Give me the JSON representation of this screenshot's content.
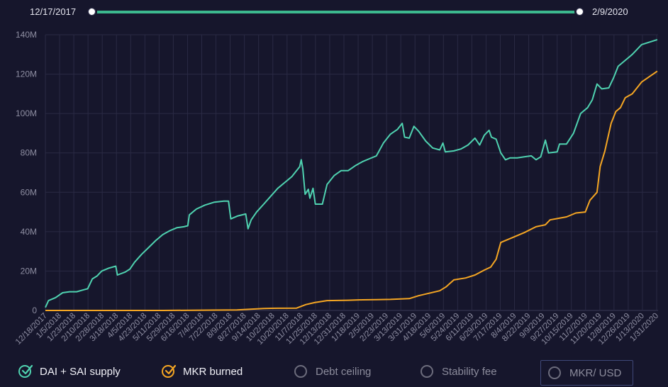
{
  "range": {
    "start_label": "12/17/2017",
    "end_label": "2/9/2020"
  },
  "colors": {
    "background": "#16162c",
    "dai": "#4fd2b0",
    "mkr": "#f5a623",
    "grid": "#2a2a44",
    "track": "#3cb88e"
  },
  "legend": [
    {
      "label": "DAI + SAI supply",
      "active": true,
      "color": "#4fd2b0"
    },
    {
      "label": "MKR burned",
      "active": true,
      "color": "#f5a623"
    },
    {
      "label": "Debt ceiling",
      "active": false
    },
    {
      "label": "Stability fee",
      "active": false
    },
    {
      "label": "MKR/ USD",
      "active": false
    }
  ],
  "chart_data": {
    "type": "line",
    "title": "",
    "xlabel": "",
    "ylabel": "",
    "y_unit": "M",
    "ylim": [
      0,
      140
    ],
    "y_ticks": [
      0,
      20,
      40,
      60,
      80,
      100,
      120,
      140
    ],
    "y_tick_labels": [
      "0",
      "20M",
      "40M",
      "60M",
      "80M",
      "100M",
      "120M",
      "140M"
    ],
    "x_range": [
      "2017-12-18",
      "2020-02-09"
    ],
    "x_tick_labels": [
      "12/18/2017",
      "1/5/2018",
      "1/23/2018",
      "2/10/2018",
      "2/28/2018",
      "3/18/2018",
      "4/5/2018",
      "4/23/2018",
      "5/11/2018",
      "5/29/2018",
      "6/16/2018",
      "7/4/2018",
      "7/22/2018",
      "8/9/2018",
      "8/27/2018",
      "9/14/2018",
      "10/2/2018",
      "10/20/2018",
      "11/7/2018",
      "11/25/2018",
      "12/13/2018",
      "12/31/2018",
      "1/18/2019",
      "2/5/2019",
      "2/23/2019",
      "3/13/2019",
      "3/31/2019",
      "4/18/2019",
      "5/6/2019",
      "5/24/2019",
      "6/11/2019",
      "6/29/2019",
      "7/17/2019",
      "8/4/2019",
      "8/22/2019",
      "9/9/2019",
      "9/27/2019",
      "10/15/2019",
      "11/2/2019",
      "11/20/2019",
      "12/8/2019",
      "12/26/2019",
      "1/13/2020",
      "1/31/2020"
    ],
    "grid": true,
    "legend_position": "bottom",
    "series": [
      {
        "name": "DAI + SAI supply",
        "color": "#4fd2b0",
        "points": [
          [
            "2017-12-18",
            1.5
          ],
          [
            "2017-12-22",
            5
          ],
          [
            "2017-12-31",
            6.5
          ],
          [
            "2018-01-09",
            9
          ],
          [
            "2018-01-18",
            9.5
          ],
          [
            "2018-01-27",
            9.5
          ],
          [
            "2018-02-05",
            10.5
          ],
          [
            "2018-02-10",
            11
          ],
          [
            "2018-02-16",
            16
          ],
          [
            "2018-02-22",
            17.5
          ],
          [
            "2018-02-28",
            20
          ],
          [
            "2018-03-09",
            21.5
          ],
          [
            "2018-03-18",
            22.5
          ],
          [
            "2018-03-20",
            18
          ],
          [
            "2018-03-30",
            19.5
          ],
          [
            "2018-04-05",
            21
          ],
          [
            "2018-04-11",
            24.5
          ],
          [
            "2018-04-20",
            28.5
          ],
          [
            "2018-04-29",
            32
          ],
          [
            "2018-05-08",
            35.5
          ],
          [
            "2018-05-17",
            38.5
          ],
          [
            "2018-05-26",
            40.5
          ],
          [
            "2018-06-04",
            42
          ],
          [
            "2018-06-13",
            42.5
          ],
          [
            "2018-06-18",
            43
          ],
          [
            "2018-06-20",
            48.5
          ],
          [
            "2018-06-29",
            51.5
          ],
          [
            "2018-07-10",
            53.5
          ],
          [
            "2018-07-22",
            55
          ],
          [
            "2018-08-03",
            55.5
          ],
          [
            "2018-08-09",
            55.5
          ],
          [
            "2018-08-12",
            46.5
          ],
          [
            "2018-08-21",
            48
          ],
          [
            "2018-08-31",
            49
          ],
          [
            "2018-09-03",
            41.5
          ],
          [
            "2018-09-07",
            46
          ],
          [
            "2018-09-14",
            50
          ],
          [
            "2018-09-23",
            54
          ],
          [
            "2018-10-02",
            58
          ],
          [
            "2018-10-11",
            62
          ],
          [
            "2018-10-20",
            65
          ],
          [
            "2018-10-29",
            68
          ],
          [
            "2018-11-04",
            71
          ],
          [
            "2018-11-08",
            73
          ],
          [
            "2018-11-10",
            76.5
          ],
          [
            "2018-11-12",
            72
          ],
          [
            "2018-11-15",
            59
          ],
          [
            "2018-11-19",
            61.5
          ],
          [
            "2018-11-21",
            57
          ],
          [
            "2018-11-25",
            62
          ],
          [
            "2018-11-28",
            54
          ],
          [
            "2018-12-07",
            54
          ],
          [
            "2018-12-13",
            64
          ],
          [
            "2018-12-22",
            68.5
          ],
          [
            "2018-12-31",
            71
          ],
          [
            "2019-01-09",
            71
          ],
          [
            "2019-01-18",
            73.5
          ],
          [
            "2019-01-27",
            75.5
          ],
          [
            "2019-02-05",
            77
          ],
          [
            "2019-02-14",
            78.5
          ],
          [
            "2019-02-23",
            85
          ],
          [
            "2019-03-04",
            89.5
          ],
          [
            "2019-03-13",
            92
          ],
          [
            "2019-03-19",
            95
          ],
          [
            "2019-03-22",
            88
          ],
          [
            "2019-03-28",
            87.5
          ],
          [
            "2019-04-03",
            93.5
          ],
          [
            "2019-04-09",
            91
          ],
          [
            "2019-04-18",
            86
          ],
          [
            "2019-04-27",
            82.5
          ],
          [
            "2019-05-06",
            81.5
          ],
          [
            "2019-05-10",
            85
          ],
          [
            "2019-05-13",
            80.5
          ],
          [
            "2019-05-24",
            81
          ],
          [
            "2019-06-02",
            82
          ],
          [
            "2019-06-11",
            84
          ],
          [
            "2019-06-20",
            87.5
          ],
          [
            "2019-06-26",
            84
          ],
          [
            "2019-07-02",
            89
          ],
          [
            "2019-07-08",
            91.5
          ],
          [
            "2019-07-11",
            88
          ],
          [
            "2019-07-17",
            87
          ],
          [
            "2019-07-23",
            80
          ],
          [
            "2019-07-29",
            76.5
          ],
          [
            "2019-08-04",
            77.5
          ],
          [
            "2019-08-13",
            77.5
          ],
          [
            "2019-08-22",
            78
          ],
          [
            "2019-08-31",
            78.5
          ],
          [
            "2019-09-06",
            76.5
          ],
          [
            "2019-09-12",
            78
          ],
          [
            "2019-09-18",
            86.5
          ],
          [
            "2019-09-22",
            80
          ],
          [
            "2019-10-03",
            80.5
          ],
          [
            "2019-10-06",
            84.5
          ],
          [
            "2019-10-15",
            84.5
          ],
          [
            "2019-10-24",
            90
          ],
          [
            "2019-11-02",
            100
          ],
          [
            "2019-11-11",
            103
          ],
          [
            "2019-11-17",
            107
          ],
          [
            "2019-11-23",
            115
          ],
          [
            "2019-11-29",
            112.5
          ],
          [
            "2019-12-08",
            113
          ],
          [
            "2019-12-14",
            118
          ],
          [
            "2019-12-20",
            124
          ],
          [
            "2019-12-29",
            127
          ],
          [
            "2020-01-07",
            130
          ],
          [
            "2020-01-19",
            135
          ],
          [
            "2020-02-08",
            137.5
          ]
        ]
      },
      {
        "name": "MKR burned",
        "color": "#f5a623",
        "points": [
          [
            "2017-12-18",
            0
          ],
          [
            "2018-05-17",
            0
          ],
          [
            "2018-08-20",
            0.3
          ],
          [
            "2018-09-23",
            1
          ],
          [
            "2018-10-11",
            1.1
          ],
          [
            "2018-11-04",
            1.2
          ],
          [
            "2018-11-16",
            3
          ],
          [
            "2018-11-27",
            4
          ],
          [
            "2018-12-13",
            5
          ],
          [
            "2019-01-09",
            5.2
          ],
          [
            "2019-01-27",
            5.4
          ],
          [
            "2019-02-14",
            5.5
          ],
          [
            "2019-03-04",
            5.6
          ],
          [
            "2019-03-28",
            6
          ],
          [
            "2019-04-09",
            7.5
          ],
          [
            "2019-05-06",
            10
          ],
          [
            "2019-05-14",
            12
          ],
          [
            "2019-05-24",
            15.5
          ],
          [
            "2019-06-08",
            16.5
          ],
          [
            "2019-06-20",
            18
          ],
          [
            "2019-07-02",
            20.5
          ],
          [
            "2019-07-10",
            22
          ],
          [
            "2019-07-17",
            26
          ],
          [
            "2019-07-23",
            34.5
          ],
          [
            "2019-08-04",
            36.5
          ],
          [
            "2019-08-22",
            39.5
          ],
          [
            "2019-09-06",
            42.5
          ],
          [
            "2019-09-18",
            43.5
          ],
          [
            "2019-09-24",
            46
          ],
          [
            "2019-10-15",
            47.5
          ],
          [
            "2019-10-27",
            49.5
          ],
          [
            "2019-11-08",
            50
          ],
          [
            "2019-11-14",
            56
          ],
          [
            "2019-11-23",
            60
          ],
          [
            "2019-11-27",
            73
          ],
          [
            "2019-12-03",
            81
          ],
          [
            "2019-12-11",
            95
          ],
          [
            "2019-12-17",
            101
          ],
          [
            "2019-12-23",
            103
          ],
          [
            "2019-12-29",
            108
          ],
          [
            "2020-01-07",
            110
          ],
          [
            "2020-01-19",
            116
          ],
          [
            "2020-02-08",
            121.5
          ]
        ]
      }
    ]
  }
}
